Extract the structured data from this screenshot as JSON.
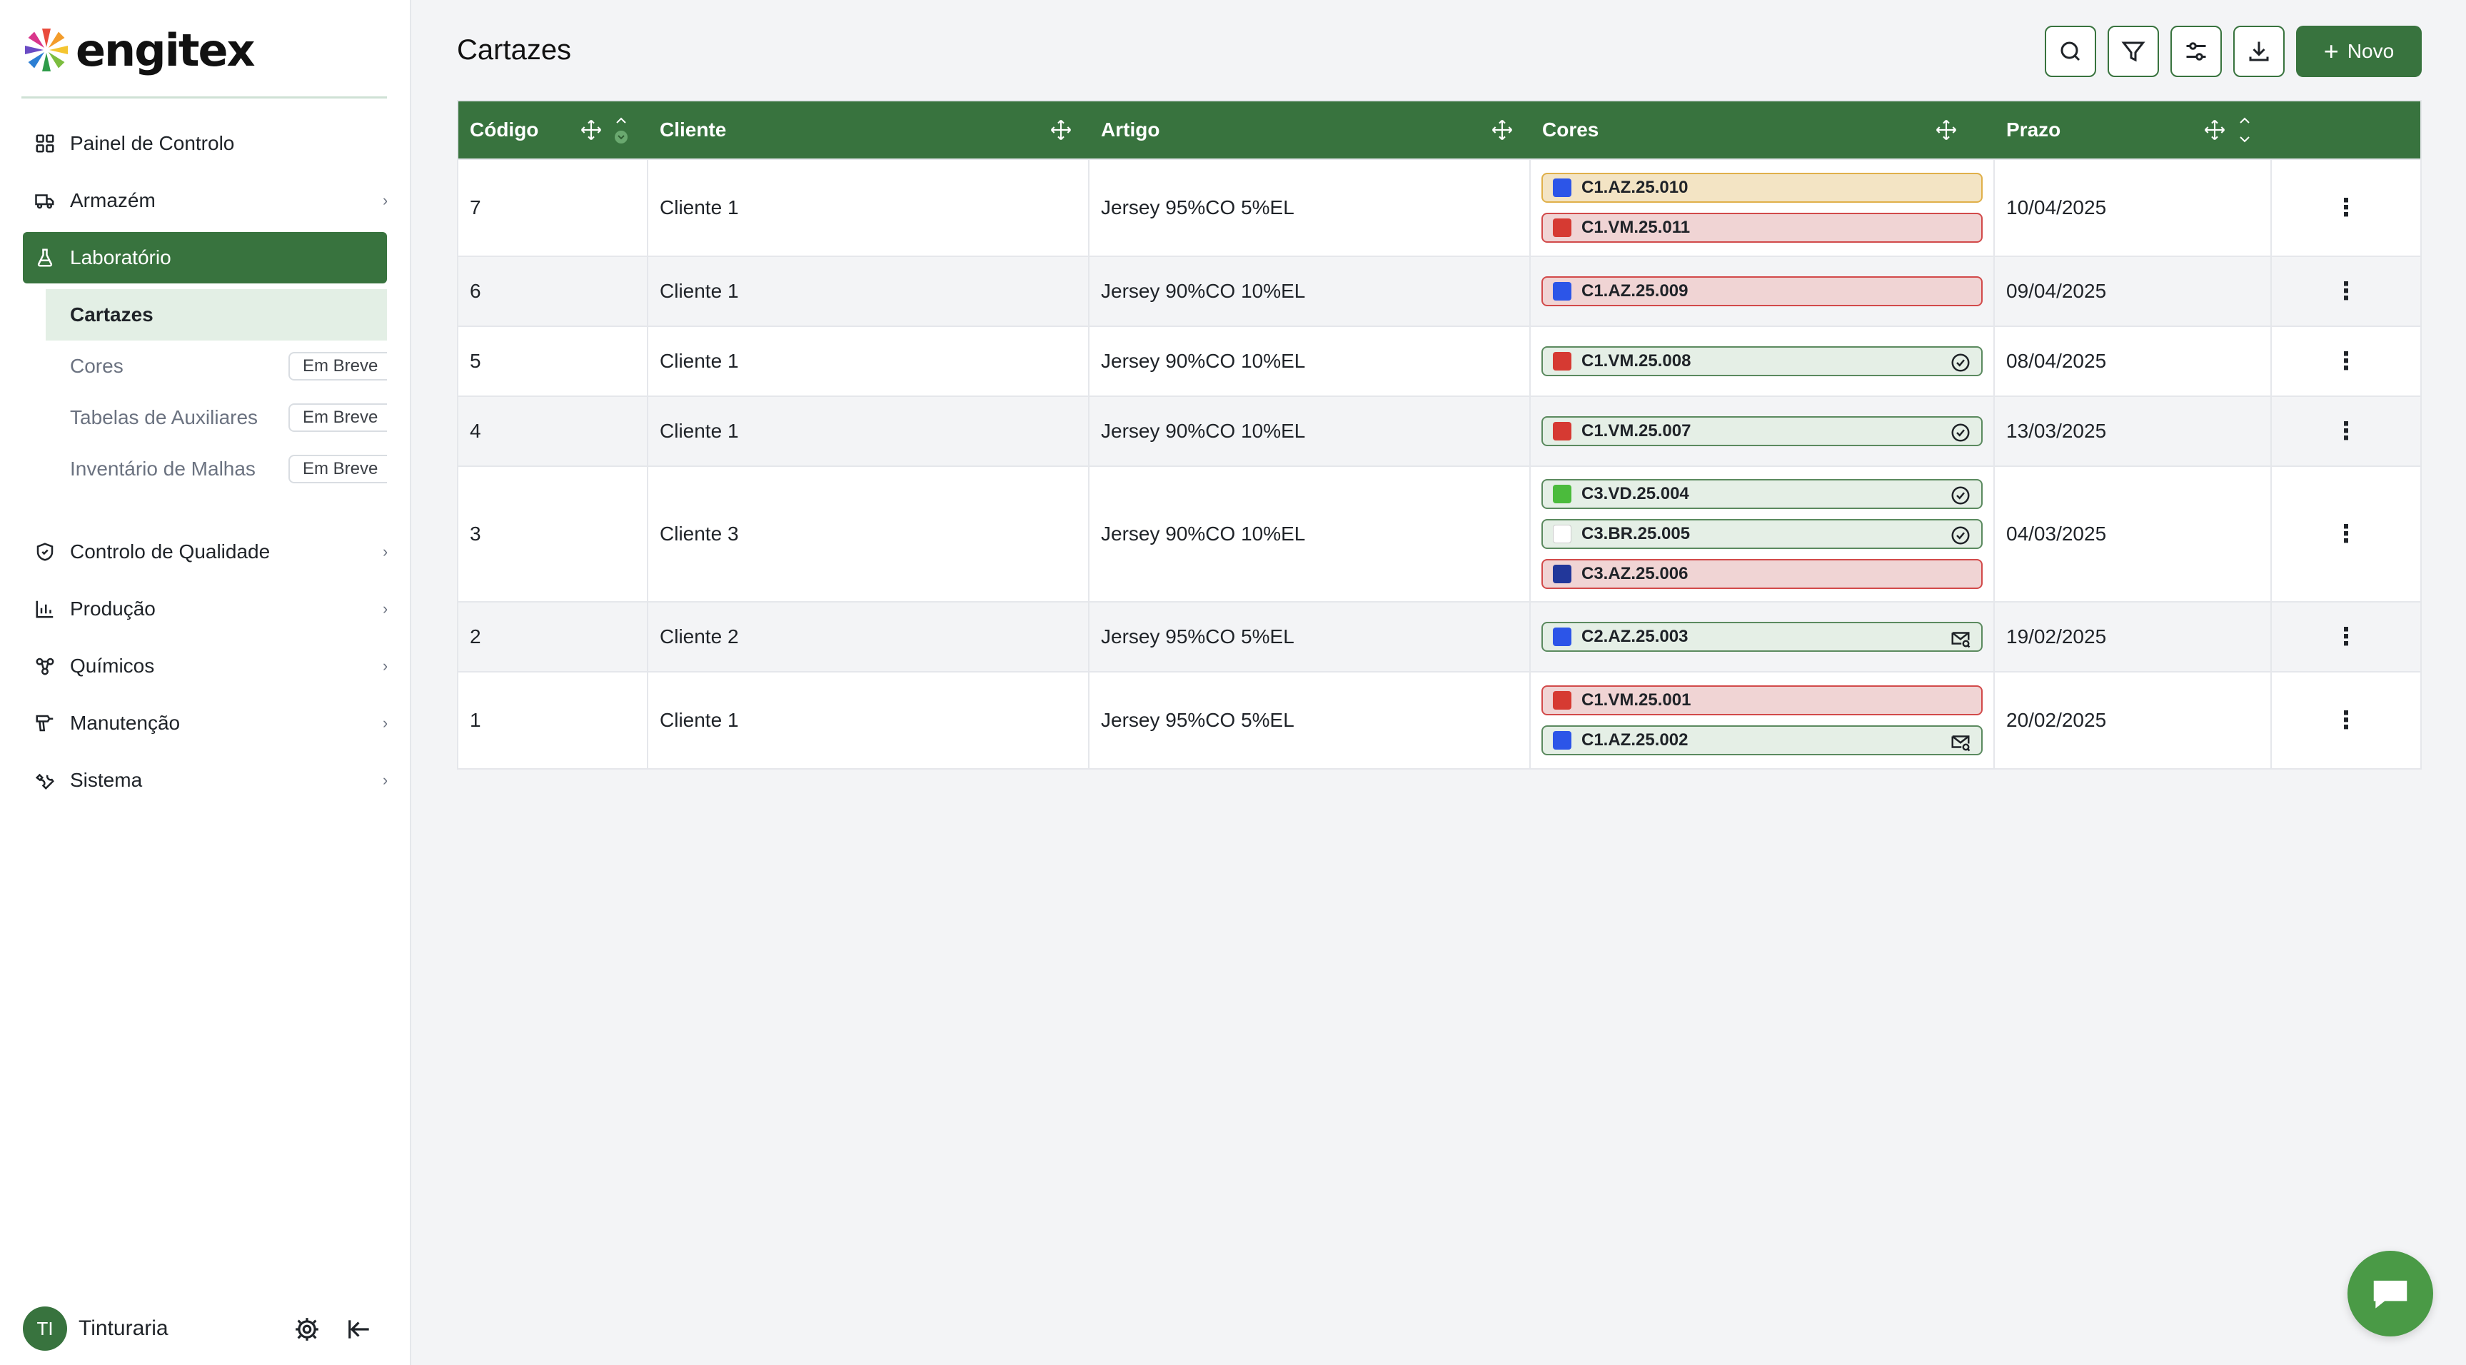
{
  "brand": {
    "name": "engitex"
  },
  "sidebar": {
    "items": [
      {
        "label": "Painel de Controlo",
        "icon": "dashboard-icon"
      },
      {
        "label": "Armazém",
        "icon": "truck-icon"
      },
      {
        "label": "Laboratório",
        "icon": "flask-icon",
        "active": true
      }
    ],
    "lab_sub": [
      {
        "label": "Cartazes",
        "active": true
      },
      {
        "label": "Cores",
        "badge": "Em Breve"
      },
      {
        "label": "Tabelas de Auxiliares",
        "badge": "Em Breve"
      },
      {
        "label": "Inventário de Malhas",
        "badge": "Em Breve"
      }
    ],
    "items2": [
      {
        "label": "Controlo de Qualidade",
        "icon": "shield-check-icon"
      },
      {
        "label": "Produção",
        "icon": "bar-chart-icon"
      },
      {
        "label": "Químicos",
        "icon": "molecule-icon"
      },
      {
        "label": "Manutenção",
        "icon": "drill-icon"
      },
      {
        "label": "Sistema",
        "icon": "wrench-icon"
      }
    ],
    "user": {
      "initials": "TI",
      "name": "Tinturaria"
    }
  },
  "main": {
    "title": "Cartazes",
    "new_label": "Novo",
    "columns": [
      "Código",
      "Cliente",
      "Artigo",
      "Cores",
      "Prazo"
    ],
    "rows": [
      {
        "code": "7",
        "client": "Cliente 1",
        "article": "Jersey 95%CO 5%EL",
        "due": "10/04/2025",
        "colors": [
          {
            "code": "C1.AZ.25.010",
            "swatch": "#2c55e8",
            "state": "amber"
          },
          {
            "code": "C1.VM.25.011",
            "swatch": "#d63a32",
            "state": "red"
          }
        ]
      },
      {
        "code": "6",
        "client": "Cliente 1",
        "article": "Jersey 90%CO 10%EL",
        "due": "09/04/2025",
        "colors": [
          {
            "code": "C1.AZ.25.009",
            "swatch": "#2c55e8",
            "state": "red"
          }
        ]
      },
      {
        "code": "5",
        "client": "Cliente 1",
        "article": "Jersey 90%CO 10%EL",
        "due": "08/04/2025",
        "colors": [
          {
            "code": "C1.VM.25.008",
            "swatch": "#d63a32",
            "state": "green",
            "status_icon": "check-circle-icon"
          }
        ]
      },
      {
        "code": "4",
        "client": "Cliente 1",
        "article": "Jersey 90%CO 10%EL",
        "due": "13/03/2025",
        "colors": [
          {
            "code": "C1.VM.25.007",
            "swatch": "#d63a32",
            "state": "green",
            "status_icon": "check-circle-icon"
          }
        ]
      },
      {
        "code": "3",
        "client": "Cliente 3",
        "article": "Jersey 90%CO 10%EL",
        "due": "04/03/2025",
        "colors": [
          {
            "code": "C3.VD.25.004",
            "swatch": "#4bbb3c",
            "state": "green",
            "status_icon": "check-circle-icon"
          },
          {
            "code": "C3.BR.25.005",
            "swatch": "#ffffff",
            "state": "green",
            "status_icon": "check-circle-icon"
          },
          {
            "code": "C3.AZ.25.006",
            "swatch": "#22379a",
            "state": "red"
          }
        ]
      },
      {
        "code": "2",
        "client": "Cliente 2",
        "article": "Jersey 95%CO 5%EL",
        "due": "19/02/2025",
        "colors": [
          {
            "code": "C2.AZ.25.003",
            "swatch": "#2c55e8",
            "state": "green",
            "status_icon": "mail-search-icon"
          }
        ]
      },
      {
        "code": "1",
        "client": "Cliente 1",
        "article": "Jersey 95%CO 5%EL",
        "due": "20/02/2025",
        "colors": [
          {
            "code": "C1.VM.25.001",
            "swatch": "#d63a32",
            "state": "red"
          },
          {
            "code": "C1.AZ.25.002",
            "swatch": "#2c55e8",
            "state": "green",
            "status_icon": "mail-search-icon"
          }
        ]
      }
    ]
  },
  "theme": {
    "accent": "#38733e",
    "fab": "#4a9a46"
  }
}
